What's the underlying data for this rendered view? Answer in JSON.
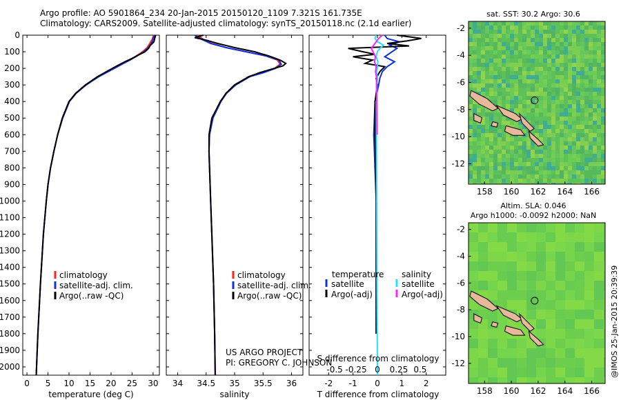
{
  "header": {
    "title_line1": "Argo profile: AO 5901864_234 20-Jan-2015 20150120_1109 7.321S 161.735E",
    "title_line2": "Climatology: CARS2009. Satellite-adjusted climatology: synTS_20150118.nc (2.1d earlier)"
  },
  "credit": "@IMOS 25-Jan-2015 20:39:39",
  "project": {
    "line1": "US ARGO PROJECT",
    "line2": "PI: GREGORY C. JOHNSON"
  },
  "colors": {
    "climatology": "#ff2020",
    "satellite": "#1030e0",
    "argo": "#000000",
    "satellite_sal": "#20e0ff",
    "argo_sal": "#ff20ff",
    "ocean": "#5fc85a",
    "land": "#e8b89a"
  },
  "chart_data": [
    {
      "id": "temperature",
      "type": "line",
      "xlabel": "temperature (deg C)",
      "ylabel": "",
      "xlim": [
        -1,
        31.5
      ],
      "ylim": [
        2050,
        0
      ],
      "xticks": [
        0,
        5,
        10,
        15,
        20,
        25,
        30
      ],
      "yticks": [
        0,
        100,
        200,
        300,
        400,
        500,
        600,
        700,
        800,
        900,
        1000,
        1100,
        1200,
        1300,
        1400,
        1500,
        1600,
        1700,
        1800,
        1900,
        2000
      ],
      "legend": [
        "climatology",
        "satellite-adj. clim.",
        "Argo(..raw -QC)"
      ],
      "series": [
        {
          "name": "climatology",
          "depth": [
            0,
            25,
            50,
            75,
            100,
            125,
            150,
            175,
            200,
            250,
            300,
            350,
            400,
            500,
            600,
            700,
            800,
            900,
            1000,
            1200,
            1500,
            1800,
            2050
          ],
          "values": [
            30.1,
            29.8,
            29.2,
            28.6,
            27.5,
            26.0,
            24.3,
            22.4,
            20.6,
            17.0,
            14.0,
            11.6,
            10.0,
            8.4,
            7.3,
            6.4,
            5.6,
            5.0,
            4.6,
            3.9,
            3.2,
            2.6,
            2.2
          ]
        },
        {
          "name": "satellite",
          "depth": [
            0,
            25,
            50,
            75,
            100,
            125,
            150,
            175,
            200,
            250,
            300,
            350,
            400,
            500,
            600,
            700,
            800,
            900,
            1000,
            1200,
            1500,
            1800,
            2050
          ],
          "values": [
            30.3,
            30.0,
            29.6,
            28.9,
            27.8,
            26.2,
            24.5,
            22.6,
            20.8,
            17.1,
            14.1,
            11.7,
            10.1,
            8.5,
            7.3,
            6.4,
            5.6,
            5.0,
            4.6,
            3.9,
            3.2,
            2.6,
            2.2
          ]
        },
        {
          "name": "argo",
          "depth": [
            0,
            20,
            40,
            60,
            80,
            100,
            120,
            140,
            160,
            180,
            200,
            250,
            300,
            350,
            400,
            500,
            600,
            700,
            800,
            900,
            1000,
            1200,
            1500,
            1800,
            2050
          ],
          "values": [
            30.6,
            30.4,
            30.2,
            29.4,
            28.9,
            28.1,
            26.5,
            25.0,
            23.3,
            21.8,
            20.3,
            16.8,
            13.9,
            11.6,
            10.0,
            8.4,
            7.3,
            6.4,
            5.6,
            5.0,
            4.6,
            3.9,
            3.2,
            2.6,
            2.2
          ]
        }
      ]
    },
    {
      "id": "salinity",
      "type": "line",
      "xlabel": "salinity",
      "xlim": [
        33.8,
        36.2
      ],
      "ylim": [
        2050,
        0
      ],
      "xticks": [
        34,
        34.5,
        35,
        35.5,
        36
      ],
      "legend": [
        "climatology",
        "satellite-adj. clim.",
        "Argo(..raw -QC)"
      ],
      "series": [
        {
          "name": "climatology",
          "depth": [
            0,
            25,
            50,
            75,
            100,
            125,
            150,
            175,
            200,
            225,
            250,
            300,
            350,
            400,
            500,
            600,
            700,
            800,
            900,
            1000,
            1200,
            1500,
            1800,
            2050
          ],
          "values": [
            34.35,
            34.45,
            34.6,
            34.85,
            35.2,
            35.55,
            35.75,
            35.8,
            35.7,
            35.5,
            35.25,
            35.0,
            34.85,
            34.75,
            34.62,
            34.56,
            34.55,
            34.56,
            34.57,
            34.58,
            34.6,
            34.63,
            34.65,
            34.66
          ]
        },
        {
          "name": "satellite",
          "depth": [
            0,
            25,
            50,
            75,
            100,
            125,
            150,
            175,
            200,
            225,
            250,
            300,
            350,
            400,
            500,
            600,
            700,
            800,
            900,
            1000,
            1200,
            1500,
            1800,
            2050
          ],
          "values": [
            34.3,
            34.42,
            34.58,
            34.85,
            35.2,
            35.55,
            35.78,
            35.82,
            35.72,
            35.52,
            35.27,
            35.02,
            34.86,
            34.76,
            34.62,
            34.56,
            34.55,
            34.56,
            34.57,
            34.58,
            34.6,
            34.63,
            34.65,
            34.66
          ]
        },
        {
          "name": "argo",
          "depth": [
            0,
            15,
            30,
            50,
            75,
            100,
            125,
            150,
            170,
            185,
            200,
            225,
            250,
            300,
            350,
            400,
            500,
            600,
            700,
            800,
            900,
            1000,
            1200,
            1500,
            1800,
            2050
          ],
          "values": [
            34.45,
            34.3,
            34.5,
            34.7,
            35.0,
            35.35,
            35.6,
            35.8,
            35.9,
            35.85,
            35.7,
            35.45,
            35.25,
            35.0,
            34.85,
            34.75,
            34.6,
            34.55,
            34.55,
            34.56,
            34.57,
            34.58,
            34.6,
            34.63,
            34.65,
            34.66
          ]
        }
      ]
    },
    {
      "id": "difference",
      "type": "line",
      "xlabel_top": "S difference from climatology",
      "xlabel_bottom": "T difference from climatology",
      "xlim": [
        -2.8,
        2.8
      ],
      "ylim": [
        2050,
        0
      ],
      "xticks": [
        -2,
        -1,
        0,
        1,
        2
      ],
      "xticklabels": [
        "-2",
        "-1",
        "0",
        "1",
        "2"
      ],
      "s_ticks": [
        -0.5,
        -0.25,
        0,
        0.25,
        0.5
      ],
      "s_ticklabels": [
        "-0.5",
        "-0.25",
        "0",
        "0.25",
        "0.5"
      ],
      "legend_left_title": "temperature",
      "legend_right_title": "salinity",
      "legend_items": [
        "satellite",
        "Argo(-adj)",
        "satellite",
        "Argo(-adj)"
      ],
      "series": [
        {
          "name": "T satellite",
          "depth": [
            0,
            20,
            40,
            60,
            80,
            100,
            130,
            160,
            190,
            220,
            260,
            300,
            400,
            600,
            1000,
            1500,
            1800
          ],
          "values": [
            0.3,
            0.4,
            0.9,
            0.5,
            0.8,
            0.6,
            0.3,
            0.7,
            0.4,
            0.2,
            0.1,
            0.05,
            -0.1,
            -0.15,
            -0.05,
            -0.05,
            -0.05
          ]
        },
        {
          "name": "T argo",
          "depth": [
            0,
            20,
            35,
            50,
            65,
            80,
            100,
            115,
            130,
            150,
            170,
            190,
            220,
            260,
            300,
            400,
            600,
            1000,
            1500,
            1800
          ],
          "values": [
            0.8,
            1.8,
            1.2,
            0.4,
            1.3,
            -1.2,
            -0.6,
            -0.1,
            -1.0,
            -0.2,
            -0.5,
            0.3,
            0.1,
            -0.05,
            0.0,
            -0.1,
            -0.1,
            -0.05,
            -0.05,
            -0.05
          ]
        },
        {
          "name": "S satellite",
          "depth": [
            0,
            20,
            40,
            60,
            80,
            100,
            130,
            160,
            190,
            220,
            260,
            300,
            400,
            600,
            1000,
            1500,
            2050
          ],
          "values": [
            -0.05,
            -0.1,
            0.0,
            0.25,
            0.1,
            0.0,
            -0.05,
            0.02,
            0.0,
            -0.03,
            0.0,
            -0.02,
            -0.03,
            -0.04,
            -0.03,
            -0.02,
            0.0
          ]
        },
        {
          "name": "S argo",
          "depth": [
            0,
            20,
            40,
            60,
            80,
            100,
            130,
            160,
            190,
            220,
            260,
            300,
            400,
            600
          ],
          "values": [
            0.2,
            0.05,
            -0.05,
            -0.15,
            -0.25,
            -0.18,
            -0.08,
            -0.12,
            -0.05,
            -0.08,
            -0.03,
            -0.04,
            -0.02,
            -0.01
          ]
        }
      ]
    },
    {
      "id": "sst_map",
      "type": "heatmap",
      "title": "sat. SST: 30.2 Argo: 30.6",
      "xlim": [
        156.8,
        167.0
      ],
      "ylim": [
        -13.5,
        -1.5
      ],
      "xticks": [
        158,
        160,
        162,
        164,
        166
      ],
      "yticks": [
        -2,
        -4,
        -6,
        -8,
        -10,
        -12
      ],
      "argo_position": [
        161.735,
        -7.321
      ]
    },
    {
      "id": "sla_map",
      "type": "heatmap",
      "title_line1": "Altim. SLA: 0.046",
      "title_line2": "Argo h1000: -0.0092 h2000: NaN",
      "xlim": [
        156.8,
        167.0
      ],
      "ylim": [
        -13.5,
        -1.5
      ],
      "xticks": [
        158,
        160,
        162,
        164,
        166
      ],
      "yticks": [
        -2,
        -4,
        -6,
        -8,
        -10,
        -12
      ],
      "argo_position": [
        161.735,
        -7.321
      ]
    }
  ]
}
